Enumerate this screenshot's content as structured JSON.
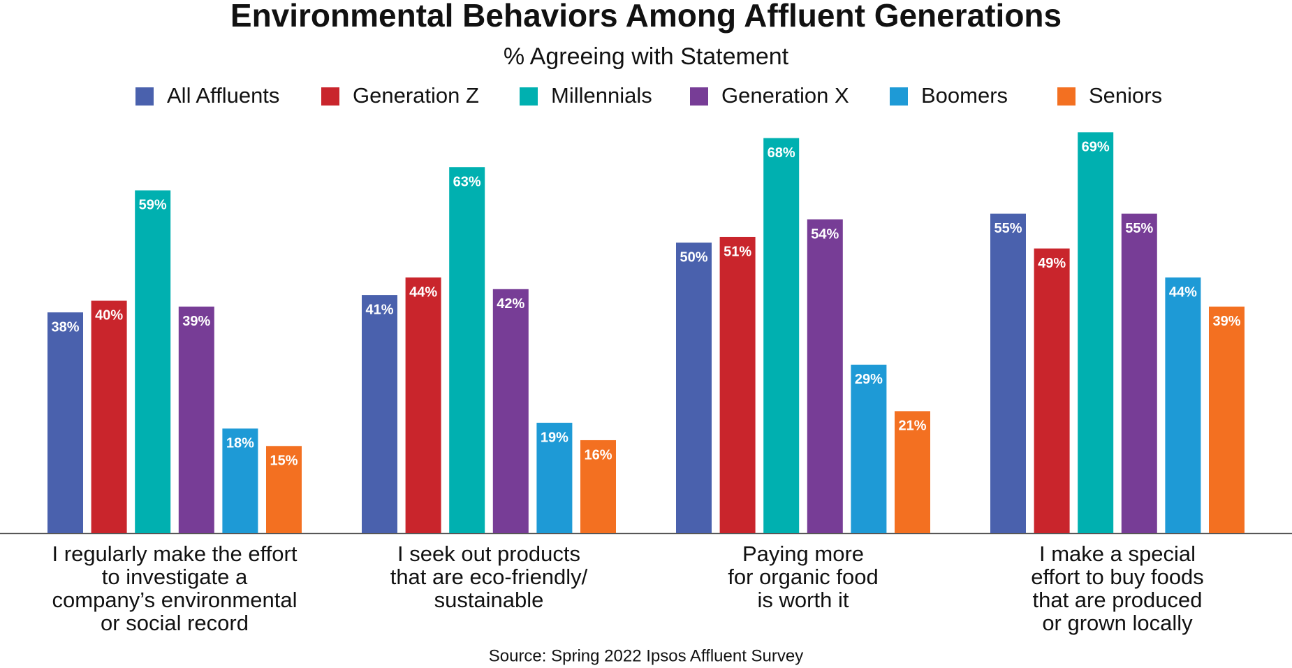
{
  "chart_data": {
    "type": "bar",
    "title": "Environmental Behaviors Among Affluent Generations",
    "subtitle": "% Agreeing with Statement",
    "categories": [
      [
        "I regularly make the effort",
        "to investigate a",
        "company’s environmental",
        "or social record"
      ],
      [
        "I seek out products",
        "that are eco-friendly/",
        "sustainable"
      ],
      [
        "Paying more",
        "for organic food",
        "is worth it"
      ],
      [
        "I make a special",
        "effort to buy foods",
        "that are produced",
        "or grown locally"
      ]
    ],
    "series": [
      {
        "name": "All Affluents",
        "color": "#4a61ad",
        "values": [
          38,
          41,
          50,
          55
        ],
        "value_labels": [
          "38%",
          "41%",
          "50%",
          "55%"
        ]
      },
      {
        "name": "Generation Z",
        "color": "#c9252c",
        "values": [
          40,
          44,
          51,
          49
        ],
        "value_labels": [
          "40%",
          "44%",
          "51%",
          "49%"
        ]
      },
      {
        "name": "Millennials",
        "color": "#00b0b0",
        "values": [
          59,
          63,
          68,
          69
        ],
        "value_labels": [
          "59%",
          "63%",
          "68%",
          "69%"
        ]
      },
      {
        "name": "Generation X",
        "color": "#773d96",
        "values": [
          39,
          42,
          54,
          55
        ],
        "value_labels": [
          "39%",
          "42%",
          "54%",
          "55%"
        ]
      },
      {
        "name": "Boomers",
        "color": "#1e9ad6",
        "values": [
          18,
          19,
          29,
          44
        ],
        "value_labels": [
          "18%",
          "19%",
          "29%",
          "44%"
        ]
      },
      {
        "name": "Seniors",
        "color": "#f37021",
        "values": [
          15,
          16,
          21,
          39
        ],
        "value_labels": [
          "15%",
          "16%",
          "21%",
          "39%"
        ]
      }
    ],
    "ylim": [
      0,
      70
    ],
    "source": "Source: Spring 2022 Ipsos Affluent Survey"
  }
}
